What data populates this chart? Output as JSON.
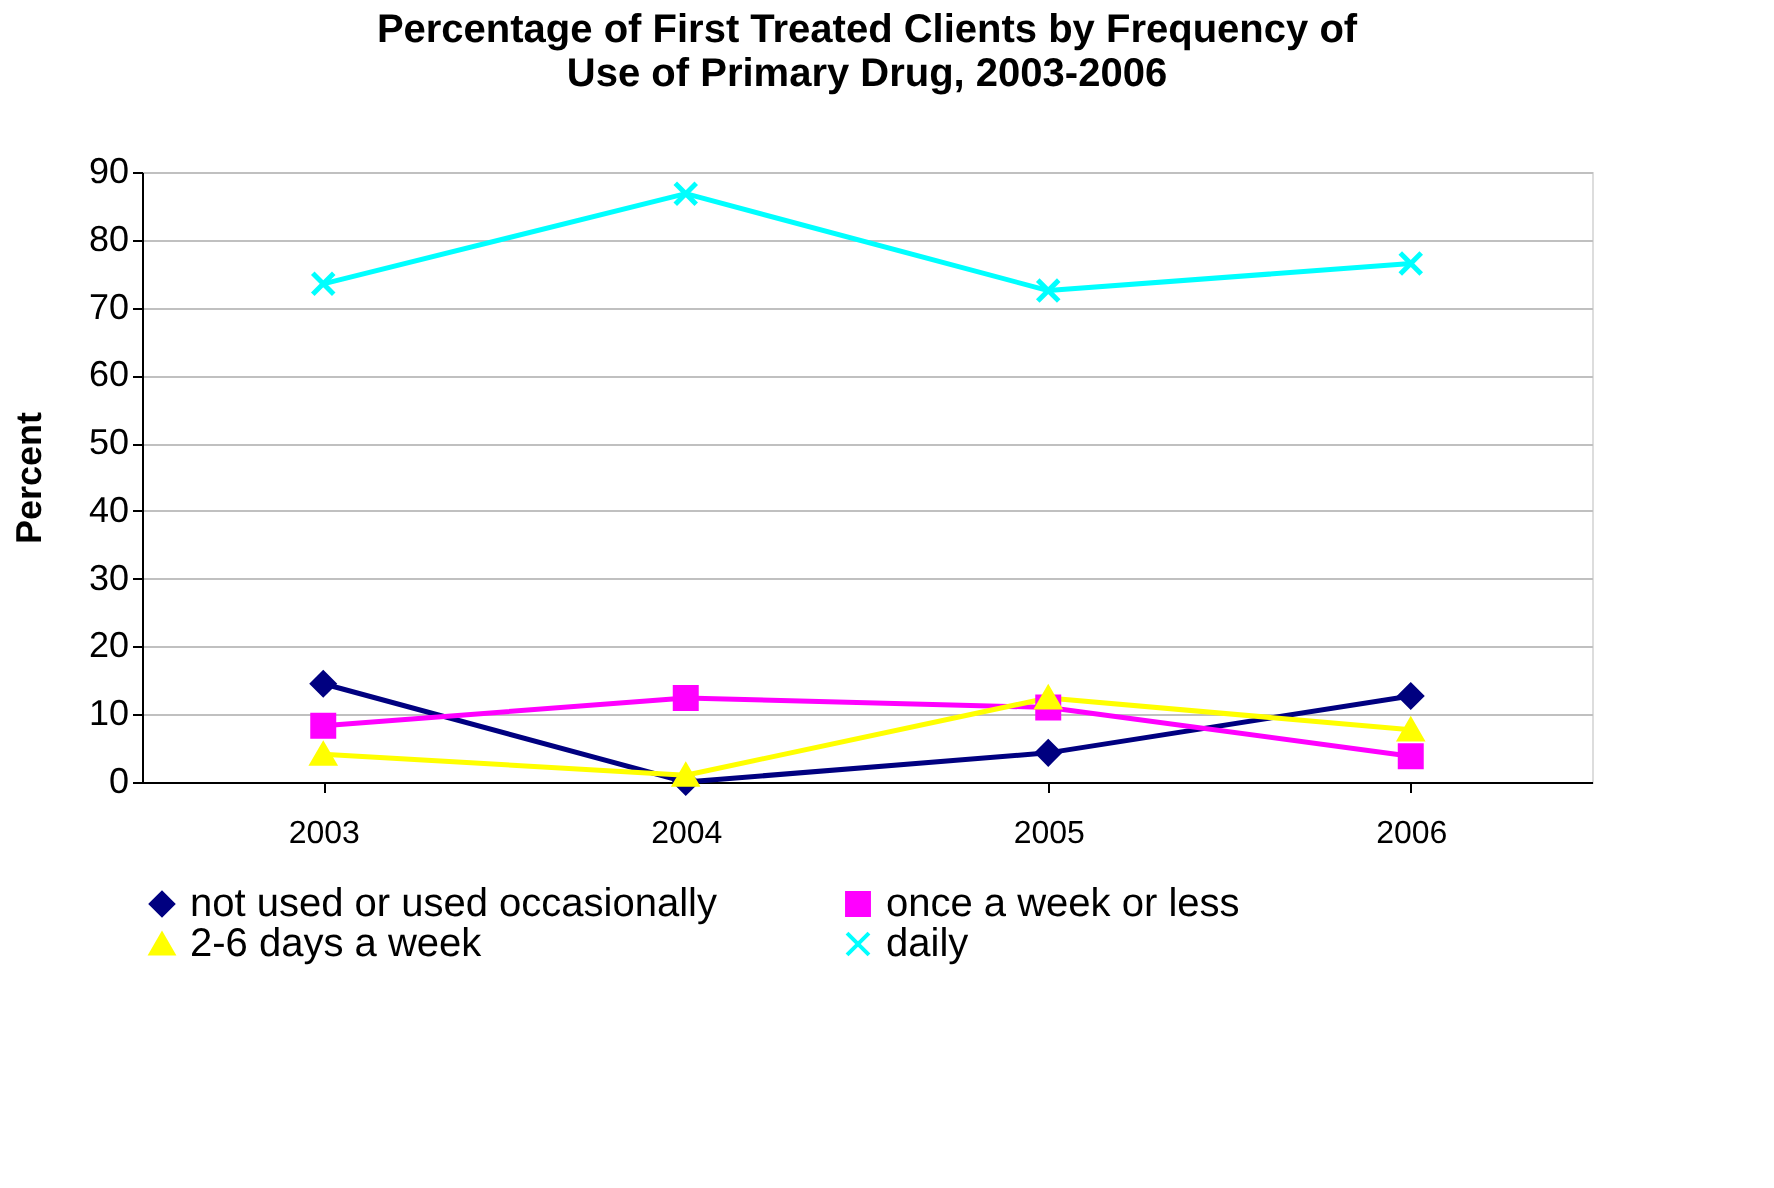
{
  "chart_data": {
    "type": "line",
    "title": "Percentage of  First Treated Clients by Frequency of\nUse of Primary Drug, 2003-2006",
    "ylabel": "Percent",
    "categories": [
      "2003",
      "2004",
      "2005",
      "2006"
    ],
    "series": [
      {
        "name": "not used or used occasionally",
        "color": "#000080",
        "marker": "diamond",
        "values": [
          14.5,
          0,
          4.3,
          12.7
        ]
      },
      {
        "name": "once a week or less",
        "color": "#ff00ff",
        "marker": "square",
        "values": [
          8.3,
          12.4,
          11,
          3.8
        ]
      },
      {
        "name": "2-6 days a week",
        "color": "#ffff00",
        "marker": "triangle",
        "values": [
          4.1,
          1,
          12.4,
          7.7
        ]
      },
      {
        "name": "daily",
        "color": "#00ffff",
        "marker": "cross",
        "values": [
          73.5,
          86.8,
          72.5,
          76.5
        ]
      }
    ],
    "ylim": [
      0,
      90
    ],
    "yticks": [
      0,
      10,
      20,
      30,
      40,
      50,
      60,
      70,
      80,
      90
    ],
    "grid": "y",
    "legend": "bottom",
    "line_style": "solid"
  }
}
